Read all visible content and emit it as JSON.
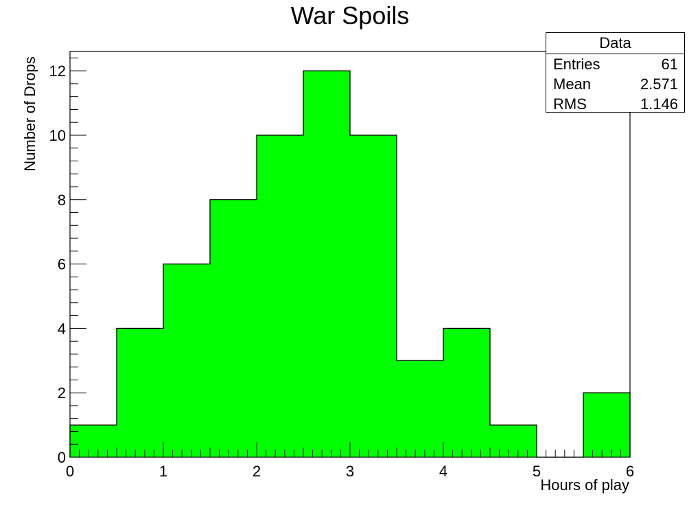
{
  "chart_data": {
    "type": "bar",
    "title": "War Spoils",
    "xlabel": "Hours of play",
    "ylabel": "Number of Drops",
    "bin_edges": [
      0,
      0.5,
      1,
      1.5,
      2,
      2.5,
      3,
      3.5,
      4,
      4.5,
      5,
      5.5,
      6
    ],
    "values": [
      1,
      4,
      6,
      8,
      10,
      12,
      10,
      3,
      4,
      1,
      0,
      2
    ],
    "xlim": [
      0,
      6
    ],
    "ylim": [
      0,
      12.6
    ],
    "x_ticks": [
      "0",
      "1",
      "2",
      "3",
      "4",
      "5",
      "6"
    ],
    "y_ticks": [
      "0",
      "2",
      "4",
      "6",
      "8",
      "10",
      "12"
    ],
    "fill_color": "#00ff00",
    "grid": false,
    "stats": {
      "title": "Data",
      "rows": [
        {
          "label": "Entries",
          "value": "61"
        },
        {
          "label": "Mean",
          "value": "2.571"
        },
        {
          "label": "RMS",
          "value": "1.146"
        }
      ]
    }
  }
}
